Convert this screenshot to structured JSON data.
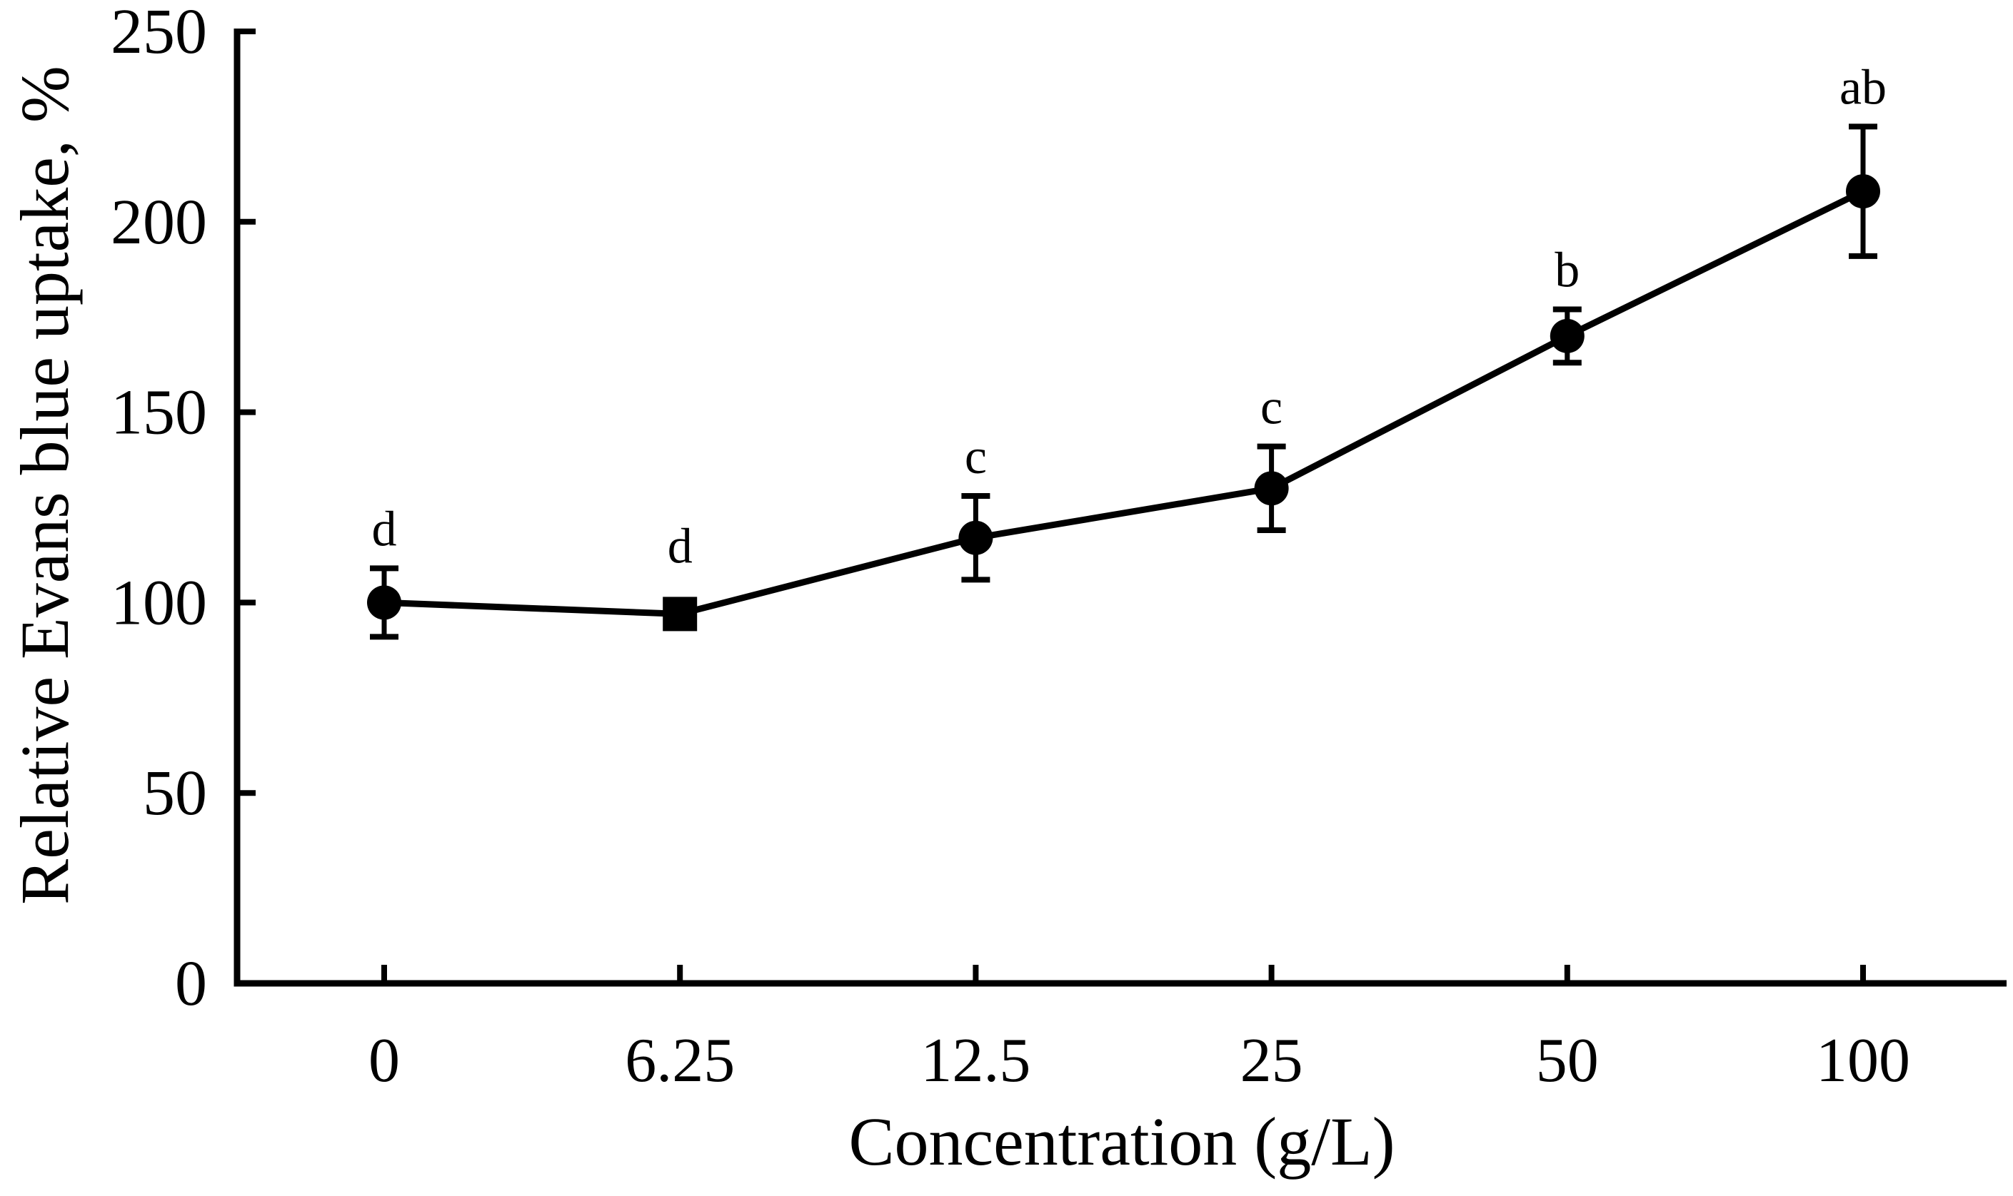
{
  "chart_data": {
    "type": "line",
    "title": "",
    "xlabel": "Concentration (g/L)",
    "ylabel": "Relative Evans blue uptake, %",
    "categories": [
      "0",
      "6.25",
      "12.5",
      "25",
      "50",
      "100"
    ],
    "x_values": [
      0,
      6.25,
      12.5,
      25,
      50,
      100
    ],
    "series": [
      {
        "name": "Relative Evans blue uptake",
        "values": [
          100,
          97,
          117,
          130,
          170,
          208
        ],
        "errors": [
          9,
          0,
          11,
          11,
          7,
          17
        ],
        "markers": [
          "circle",
          "square",
          "circle",
          "circle",
          "circle",
          "circle"
        ],
        "point_labels": [
          "d",
          "d",
          "c",
          "c",
          "b",
          "ab"
        ]
      }
    ],
    "y_ticks": [
      0,
      50,
      100,
      150,
      200,
      250
    ],
    "ylim": [
      0,
      250
    ],
    "x_axis_type": "categorical",
    "grid": false,
    "legend": false,
    "line_color": "#000000",
    "marker_color": "#000000",
    "error_bar_color": "#000000",
    "axis_color": "#000000",
    "background_color": "#ffffff"
  }
}
